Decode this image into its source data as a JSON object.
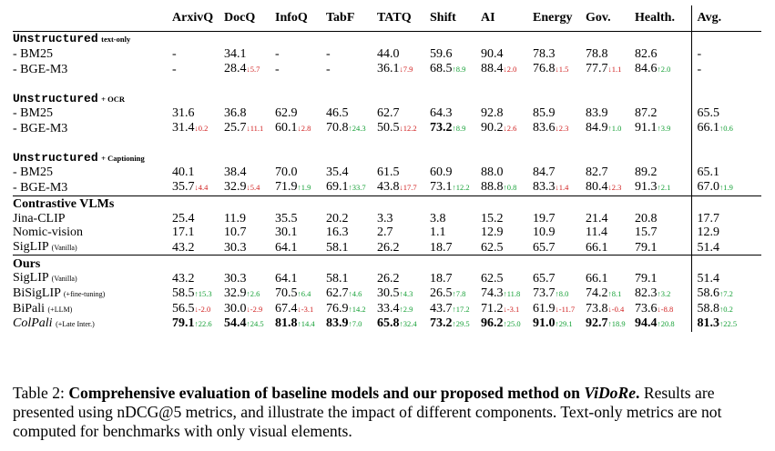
{
  "columns": [
    "",
    "ArxivQ",
    "DocQ",
    "InfoQ",
    "TabF",
    "TATQ",
    "Shift",
    "AI",
    "Energy",
    "Gov.",
    "Health.",
    "Avg."
  ],
  "sections": [
    {
      "title": "Unstructured",
      "suffix": "text-only",
      "rows": [
        {
          "label": "- BM25",
          "cells": [
            {
              "v": "-"
            },
            {
              "v": "34.1"
            },
            {
              "v": "-"
            },
            {
              "v": "-"
            },
            {
              "v": "44.0"
            },
            {
              "v": "59.6"
            },
            {
              "v": "90.4"
            },
            {
              "v": "78.3"
            },
            {
              "v": "78.8"
            },
            {
              "v": "82.6"
            },
            {
              "v": "-"
            }
          ]
        },
        {
          "label": "- BGE-M3",
          "cells": [
            {
              "v": "-"
            },
            {
              "v": "28.4",
              "d": "↓5.7",
              "dir": "down"
            },
            {
              "v": "-"
            },
            {
              "v": "-"
            },
            {
              "v": "36.1",
              "d": "↓7.9",
              "dir": "down"
            },
            {
              "v": "68.5",
              "d": "↑8.9",
              "dir": "up"
            },
            {
              "v": "88.4",
              "d": "↓2.0",
              "dir": "down"
            },
            {
              "v": "76.8",
              "d": "↓1.5",
              "dir": "down"
            },
            {
              "v": "77.7",
              "d": "↓1.1",
              "dir": "down"
            },
            {
              "v": "84.6",
              "d": "↑2.0",
              "dir": "up"
            },
            {
              "v": "-"
            }
          ]
        }
      ]
    },
    {
      "title": "Unstructured",
      "suffix": "+ OCR",
      "rows": [
        {
          "label": "- BM25",
          "cells": [
            {
              "v": "31.6"
            },
            {
              "v": "36.8"
            },
            {
              "v": "62.9"
            },
            {
              "v": "46.5"
            },
            {
              "v": "62.7"
            },
            {
              "v": "64.3"
            },
            {
              "v": "92.8"
            },
            {
              "v": "85.9"
            },
            {
              "v": "83.9"
            },
            {
              "v": "87.2"
            },
            {
              "v": "65.5"
            }
          ]
        },
        {
          "label": "- BGE-M3",
          "cells": [
            {
              "v": "31.4",
              "d": "↓0.2",
              "dir": "down"
            },
            {
              "v": "25.7",
              "d": "↓11.1",
              "dir": "down"
            },
            {
              "v": "60.1",
              "d": "↓2.8",
              "dir": "down"
            },
            {
              "v": "70.8",
              "d": "↑24.3",
              "dir": "up"
            },
            {
              "v": "50.5",
              "d": "↓12.2",
              "dir": "down"
            },
            {
              "v": "73.2",
              "d": "↑8.9",
              "dir": "up",
              "b": true
            },
            {
              "v": "90.2",
              "d": "↓2.6",
              "dir": "down"
            },
            {
              "v": "83.6",
              "d": "↓2.3",
              "dir": "down"
            },
            {
              "v": "84.9",
              "d": "↑1.0",
              "dir": "up"
            },
            {
              "v": "91.1",
              "d": "↑3.9",
              "dir": "up"
            },
            {
              "v": "66.1",
              "d": "↑0.6",
              "dir": "up"
            }
          ]
        }
      ]
    },
    {
      "title": "Unstructured",
      "suffix": "+ Captioning",
      "rows": [
        {
          "label": "- BM25",
          "cells": [
            {
              "v": "40.1"
            },
            {
              "v": "38.4"
            },
            {
              "v": "70.0"
            },
            {
              "v": "35.4"
            },
            {
              "v": "61.5"
            },
            {
              "v": "60.9"
            },
            {
              "v": "88.0"
            },
            {
              "v": "84.7"
            },
            {
              "v": "82.7"
            },
            {
              "v": "89.2"
            },
            {
              "v": "65.1"
            }
          ]
        },
        {
          "label": "- BGE-M3",
          "cells": [
            {
              "v": "35.7",
              "d": "↓4.4",
              "dir": "down"
            },
            {
              "v": "32.9",
              "d": "↓5.4",
              "dir": "down"
            },
            {
              "v": "71.9",
              "d": "↑1.9",
              "dir": "up"
            },
            {
              "v": "69.1",
              "d": "↑33.7",
              "dir": "up"
            },
            {
              "v": "43.8",
              "d": "↓17.7",
              "dir": "down"
            },
            {
              "v": "73.1",
              "d": "↑12.2",
              "dir": "up"
            },
            {
              "v": "88.8",
              "d": "↑0.8",
              "dir": "up"
            },
            {
              "v": "83.3",
              "d": "↓1.4",
              "dir": "down"
            },
            {
              "v": "80.4",
              "d": "↓2.3",
              "dir": "down"
            },
            {
              "v": "91.3",
              "d": "↑2.1",
              "dir": "up"
            },
            {
              "v": "67.0",
              "d": "↑1.9",
              "dir": "up"
            }
          ]
        }
      ]
    },
    {
      "title": "Contrastive VLMs",
      "rows": [
        {
          "label": "Jina-CLIP",
          "cells": [
            {
              "v": "25.4"
            },
            {
              "v": "11.9"
            },
            {
              "v": "35.5"
            },
            {
              "v": "20.2"
            },
            {
              "v": "3.3"
            },
            {
              "v": "3.8"
            },
            {
              "v": "15.2"
            },
            {
              "v": "19.7"
            },
            {
              "v": "21.4"
            },
            {
              "v": "20.8"
            },
            {
              "v": "17.7"
            }
          ]
        },
        {
          "label": "Nomic-vision",
          "cells": [
            {
              "v": "17.1"
            },
            {
              "v": "10.7"
            },
            {
              "v": "30.1"
            },
            {
              "v": "16.3"
            },
            {
              "v": "2.7"
            },
            {
              "v": "1.1"
            },
            {
              "v": "12.9"
            },
            {
              "v": "10.9"
            },
            {
              "v": "11.4"
            },
            {
              "v": "15.7"
            },
            {
              "v": "12.9"
            }
          ]
        },
        {
          "label": "SigLIP",
          "note": "(Vanilla)",
          "cells": [
            {
              "v": "43.2"
            },
            {
              "v": "30.3"
            },
            {
              "v": "64.1"
            },
            {
              "v": "58.1"
            },
            {
              "v": "26.2"
            },
            {
              "v": "18.7"
            },
            {
              "v": "62.5"
            },
            {
              "v": "65.7"
            },
            {
              "v": "66.1"
            },
            {
              "v": "79.1"
            },
            {
              "v": "51.4"
            }
          ]
        }
      ]
    },
    {
      "title": "Ours",
      "rows": [
        {
          "label": "SigLIP",
          "note": "(Vanilla)",
          "cells": [
            {
              "v": "43.2"
            },
            {
              "v": "30.3"
            },
            {
              "v": "64.1"
            },
            {
              "v": "58.1"
            },
            {
              "v": "26.2"
            },
            {
              "v": "18.7"
            },
            {
              "v": "62.5"
            },
            {
              "v": "65.7"
            },
            {
              "v": "66.1"
            },
            {
              "v": "79.1"
            },
            {
              "v": "51.4"
            }
          ]
        },
        {
          "label": "BiSigLIP",
          "note": "(+fine-tuning)",
          "cells": [
            {
              "v": "58.5",
              "d": "↑15.3",
              "dir": "up"
            },
            {
              "v": "32.9",
              "d": "↑2.6",
              "dir": "up"
            },
            {
              "v": "70.5",
              "d": "↑6.4",
              "dir": "up"
            },
            {
              "v": "62.7",
              "d": "↑4.6",
              "dir": "up"
            },
            {
              "v": "30.5",
              "d": "↑4.3",
              "dir": "up"
            },
            {
              "v": "26.5",
              "d": "↑7.8",
              "dir": "up"
            },
            {
              "v": "74.3",
              "d": "↑11.8",
              "dir": "up"
            },
            {
              "v": "73.7",
              "d": "↑8.0",
              "dir": "up"
            },
            {
              "v": "74.2",
              "d": "↑8.1",
              "dir": "up"
            },
            {
              "v": "82.3",
              "d": "↑3.2",
              "dir": "up"
            },
            {
              "v": "58.6",
              "d": "↑7.2",
              "dir": "up"
            }
          ]
        },
        {
          "label": "BiPali",
          "note": "(+LLM)",
          "cells": [
            {
              "v": "56.5",
              "d": "↓-2.0",
              "dir": "down"
            },
            {
              "v": "30.0",
              "d": "↓-2.9",
              "dir": "down"
            },
            {
              "v": "67.4",
              "d": "↓-3.1",
              "dir": "down"
            },
            {
              "v": "76.9",
              "d": "↑14.2",
              "dir": "up"
            },
            {
              "v": "33.4",
              "d": "↑2.9",
              "dir": "up"
            },
            {
              "v": "43.7",
              "d": "↑17.2",
              "dir": "up"
            },
            {
              "v": "71.2",
              "d": "↓-3.1",
              "dir": "down"
            },
            {
              "v": "61.9",
              "d": "↓-11.7",
              "dir": "down"
            },
            {
              "v": "73.8",
              "d": "↓-0.4",
              "dir": "down"
            },
            {
              "v": "73.6",
              "d": "↓-8.8",
              "dir": "down"
            },
            {
              "v": "58.8",
              "d": "↑0.2",
              "dir": "up"
            }
          ]
        },
        {
          "label": "ColPali",
          "note": "(+Late Inter.)",
          "italic": true,
          "cells": [
            {
              "v": "79.1",
              "d": "↑22.6",
              "dir": "up",
              "b": true
            },
            {
              "v": "54.4",
              "d": "↑24.5",
              "dir": "up",
              "b": true
            },
            {
              "v": "81.8",
              "d": "↑14.4",
              "dir": "up",
              "b": true
            },
            {
              "v": "83.9",
              "d": "↑7.0",
              "dir": "up",
              "b": true
            },
            {
              "v": "65.8",
              "d": "↑32.4",
              "dir": "up",
              "b": true
            },
            {
              "v": "73.2",
              "d": "↑29.5",
              "dir": "up",
              "b": true
            },
            {
              "v": "96.2",
              "d": "↑25.0",
              "dir": "up",
              "b": true
            },
            {
              "v": "91.0",
              "d": "↑29.1",
              "dir": "up",
              "b": true
            },
            {
              "v": "92.7",
              "d": "↑18.9",
              "dir": "up",
              "b": true
            },
            {
              "v": "94.4",
              "d": "↑20.8",
              "dir": "up",
              "b": true
            },
            {
              "v": "81.3",
              "d": "↑22.5",
              "dir": "up",
              "b": true
            }
          ]
        }
      ]
    }
  ],
  "caption": {
    "label": "Table 2:",
    "bold_text": "Comprehensive evaluation of baseline models and our proposed method on",
    "bold_italic": "ViDoRe",
    "bold_end": ".",
    "text": "Results are presented using nDCG@5 metrics, and illustrate the impact of different components. Text-only metrics are not computed for benchmarks with only visual elements."
  }
}
